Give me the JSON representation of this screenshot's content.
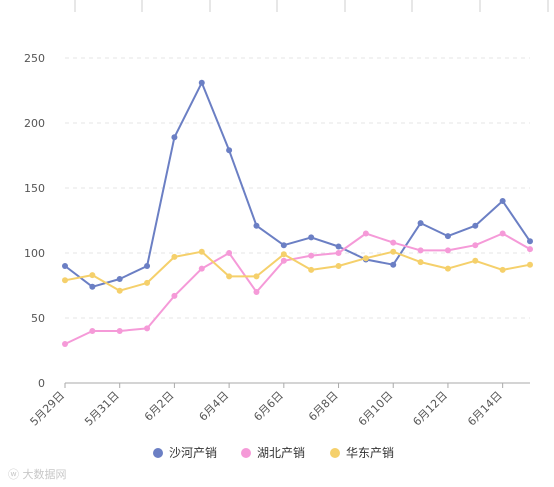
{
  "chart_data": {
    "type": "line",
    "categories": [
      "5月29日",
      "5月30日",
      "5月31日",
      "6月1日",
      "6月2日",
      "6月3日",
      "6月4日",
      "6月5日",
      "6月6日",
      "6月7日",
      "6月8日",
      "6月9日",
      "6月10日",
      "6月11日",
      "6月12日",
      "6月13日",
      "6月14日",
      "6月15日"
    ],
    "x_tick_labels": [
      "5月29日",
      "5月31日",
      "6月2日",
      "6月4日",
      "6月6日",
      "6月8日",
      "6月10日",
      "6月12日",
      "6月14日"
    ],
    "ylim": [
      0,
      250
    ],
    "y_ticks": [
      0,
      50,
      100,
      150,
      200,
      250
    ],
    "grid": true,
    "legend_position": "bottom",
    "series": [
      {
        "name": "沙河产销",
        "color": "#6b7fc4",
        "values": [
          90,
          74,
          80,
          90,
          189,
          231,
          179,
          121,
          106,
          112,
          105,
          95,
          91,
          123,
          113,
          121,
          140,
          109
        ]
      },
      {
        "name": "湖北产销",
        "color": "#f59ad8",
        "values": [
          30,
          40,
          40,
          42,
          67,
          88,
          100,
          70,
          94,
          98,
          100,
          115,
          108,
          102,
          102,
          106,
          115,
          103
        ]
      },
      {
        "name": "华东产销",
        "color": "#f5d06b",
        "values": [
          79,
          83,
          71,
          77,
          97,
          101,
          82,
          82,
          99,
          87,
          90,
          96,
          101,
          93,
          88,
          94,
          87,
          91
        ]
      }
    ]
  },
  "watermark": "大数据网"
}
